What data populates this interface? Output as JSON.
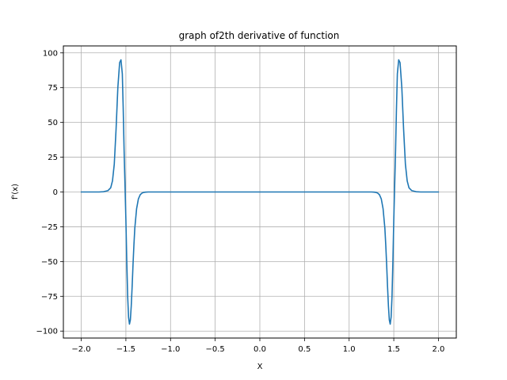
{
  "chart_data": {
    "type": "line",
    "title": "graph of2th derivative of function",
    "xlabel": "X",
    "ylabel": "f'(x)",
    "xlim": [
      -2.2,
      2.2
    ],
    "ylim": [
      -105,
      105
    ],
    "xticks": [
      -2.0,
      -1.5,
      -1.0,
      -0.5,
      0.0,
      0.5,
      1.0,
      1.5,
      2.0
    ],
    "xtick_labels": [
      "−2.0",
      "−1.5",
      "−1.0",
      "−0.5",
      "0.0",
      "0.5",
      "1.0",
      "1.5",
      "2.0"
    ],
    "yticks": [
      100,
      75,
      50,
      25,
      0,
      -25,
      -50,
      -75,
      -100
    ],
    "ytick_labels": [
      "100",
      "75",
      "50",
      "25",
      "0",
      "−25",
      "−50",
      "−75",
      "−100"
    ],
    "grid": true,
    "line_color": "#1f77b4",
    "series": [
      {
        "x": [
          -2.0,
          -1.8,
          -1.75,
          -1.7,
          -1.67,
          -1.65,
          -1.63,
          -1.61,
          -1.59,
          -1.57,
          -1.555,
          -1.54,
          -1.53,
          -1.52,
          -1.51,
          -1.5,
          -1.49,
          -1.48,
          -1.47,
          -1.46,
          -1.45,
          -1.44,
          -1.43,
          -1.42,
          -1.41,
          -1.4,
          -1.38,
          -1.36,
          -1.34,
          -1.32,
          -1.3,
          -1.28,
          -1.25,
          0.0,
          1.25,
          1.28,
          1.3,
          1.32,
          1.34,
          1.36,
          1.38,
          1.4,
          1.41,
          1.42,
          1.43,
          1.44,
          1.45,
          1.46,
          1.47,
          1.48,
          1.49,
          1.5,
          1.51,
          1.52,
          1.53,
          1.54,
          1.555,
          1.57,
          1.59,
          1.61,
          1.63,
          1.65,
          1.67,
          1.7,
          1.75,
          1.8,
          2.0
        ],
        "y": [
          0,
          0,
          0.2,
          1,
          3,
          8,
          20,
          45,
          75,
          93,
          95,
          85,
          60,
          30,
          5,
          -20,
          -50,
          -75,
          -90,
          -95,
          -92,
          -82,
          -68,
          -52,
          -38,
          -26,
          -12,
          -5,
          -2,
          -0.8,
          -0.3,
          -0.1,
          0,
          0,
          0,
          -0.1,
          -0.3,
          -0.8,
          -2,
          -5,
          -12,
          -26,
          -38,
          -52,
          -68,
          -82,
          -92,
          -95,
          -90,
          -75,
          -50,
          -20,
          5,
          30,
          60,
          85,
          95,
          93,
          75,
          45,
          20,
          8,
          3,
          1,
          0.2,
          0,
          0
        ]
      }
    ]
  }
}
